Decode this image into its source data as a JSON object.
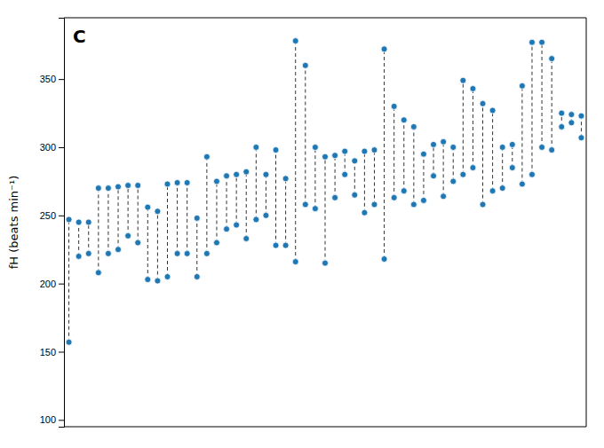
{
  "chart_data": {
    "type": "dumbbell",
    "title": "C",
    "ylabel": "fH (beats min⁻¹)",
    "ylim": [
      95,
      395
    ],
    "yticks": [
      100,
      150,
      200,
      250,
      300,
      350
    ],
    "tick_labels": "y",
    "grid": false,
    "line_style": "dashed",
    "values": [
      [
        157,
        247
      ],
      [
        220,
        245
      ],
      [
        222,
        245
      ],
      [
        208,
        270
      ],
      [
        222,
        270
      ],
      [
        225,
        271
      ],
      [
        235,
        272
      ],
      [
        230,
        272
      ],
      [
        203,
        256
      ],
      [
        202,
        253
      ],
      [
        205,
        273
      ],
      [
        222,
        274
      ],
      [
        222,
        274
      ],
      [
        205,
        248
      ],
      [
        222,
        293
      ],
      [
        230,
        275
      ],
      [
        240,
        279
      ],
      [
        243,
        280
      ],
      [
        233,
        282
      ],
      [
        247,
        300
      ],
      [
        250,
        280
      ],
      [
        228,
        298
      ],
      [
        228,
        277
      ],
      [
        216,
        378
      ],
      [
        258,
        360
      ],
      [
        255,
        300
      ],
      [
        215,
        293
      ],
      [
        263,
        294
      ],
      [
        280,
        297
      ],
      [
        265,
        290
      ],
      [
        252,
        297
      ],
      [
        258,
        298
      ],
      [
        218,
        372
      ],
      [
        263,
        330
      ],
      [
        268,
        320
      ],
      [
        258,
        315
      ],
      [
        261,
        295
      ],
      [
        279,
        302
      ],
      [
        264,
        304
      ],
      [
        275,
        300
      ],
      [
        280,
        349
      ],
      [
        285,
        343
      ],
      [
        258,
        332
      ],
      [
        268,
        327
      ],
      [
        270,
        300
      ],
      [
        285,
        302
      ],
      [
        273,
        345
      ],
      [
        280,
        377
      ],
      [
        300,
        377
      ],
      [
        298,
        365
      ],
      [
        315,
        325
      ],
      [
        318,
        324
      ],
      [
        307,
        323
      ]
    ]
  }
}
